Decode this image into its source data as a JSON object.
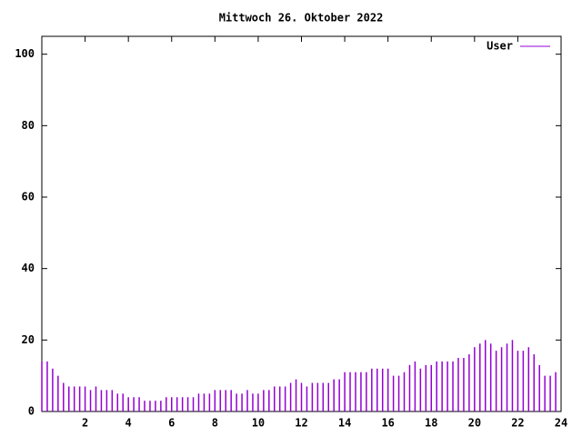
{
  "chart_data": {
    "type": "impulse",
    "title": "Mittwoch 26. Oktober 2022",
    "x": [
      0,
      0.25,
      0.5,
      0.75,
      1,
      1.25,
      1.5,
      1.75,
      2,
      2.25,
      2.5,
      2.75,
      3,
      3.25,
      3.5,
      3.75,
      4,
      4.25,
      4.5,
      4.75,
      5,
      5.25,
      5.5,
      5.75,
      6,
      6.25,
      6.5,
      6.75,
      7,
      7.25,
      7.5,
      7.75,
      8,
      8.25,
      8.5,
      8.75,
      9,
      9.25,
      9.5,
      9.75,
      10,
      10.25,
      10.5,
      10.75,
      11,
      11.25,
      11.5,
      11.75,
      12,
      12.25,
      12.5,
      12.75,
      13,
      13.25,
      13.5,
      13.75,
      14,
      14.25,
      14.5,
      14.75,
      15,
      15.25,
      15.5,
      15.75,
      16,
      16.25,
      16.5,
      16.75,
      17,
      17.25,
      17.5,
      17.75,
      18,
      18.25,
      18.5,
      18.75,
      19,
      19.25,
      19.5,
      19.75,
      20,
      20.25,
      20.5,
      20.75,
      21,
      21.25,
      21.5,
      21.75,
      22,
      22.25,
      22.5,
      22.75,
      23,
      23.25,
      23.5,
      23.75
    ],
    "series": [
      {
        "name": "User",
        "color": "#9400d3",
        "values": [
          14,
          14,
          12,
          10,
          8,
          7,
          7,
          7,
          7,
          6,
          7,
          6,
          6,
          6,
          5,
          5,
          4,
          4,
          4,
          3,
          3,
          3,
          3,
          4,
          4,
          4,
          4,
          4,
          4,
          5,
          5,
          5,
          6,
          6,
          6,
          6,
          5,
          5,
          6,
          5,
          5,
          6,
          6,
          7,
          7,
          7,
          8,
          9,
          8,
          7,
          8,
          8,
          8,
          8,
          9,
          9,
          11,
          11,
          11,
          11,
          11,
          12,
          12,
          12,
          12,
          10,
          10,
          11,
          13,
          14,
          12,
          13,
          13,
          14,
          14,
          14,
          14,
          15,
          15,
          16,
          18,
          19,
          20,
          19,
          17,
          18,
          19,
          20,
          17,
          17,
          18,
          16,
          13,
          10,
          10,
          11
        ]
      }
    ],
    "xlim": [
      0,
      24
    ],
    "xticks": [
      2,
      4,
      6,
      8,
      10,
      12,
      14,
      16,
      18,
      20,
      22,
      24
    ],
    "ylim": [
      0,
      105
    ],
    "yticks": [
      0,
      20,
      40,
      60,
      80,
      100
    ],
    "legend": "top-right"
  }
}
